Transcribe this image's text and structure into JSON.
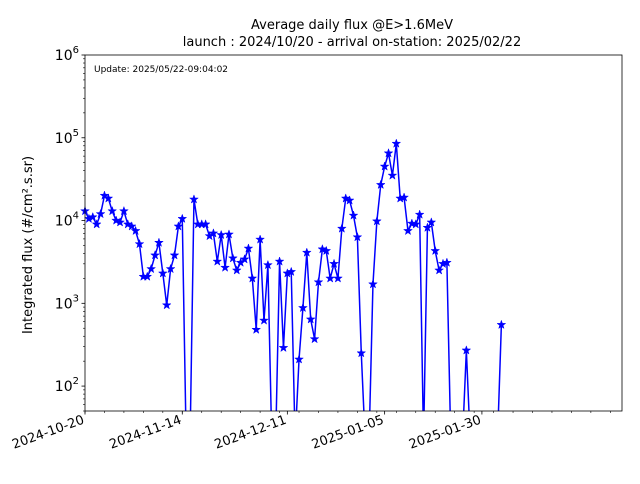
{
  "chart_data": {
    "type": "line",
    "title_line1": "Average daily flux @E>1.6MeV",
    "title_line2": "launch : 2024/10/20 - arrival on-station: 2025/02/22",
    "annotation": "Update: 2025/05/22-09:04:02",
    "ylabel": "Integrated flux (#/cm².s.sr)",
    "xlabel": "",
    "yscale": "log",
    "ylim": [
      50,
      1000000
    ],
    "xlim": [
      "2024-10-20",
      "2025-03-07"
    ],
    "grid": false,
    "color": "#0000ff",
    "marker": "star",
    "x_ticks": [
      "2024-10-20",
      "2024-11-14",
      "2024-12-11",
      "2025-01-05",
      "2025-01-30"
    ],
    "y_ticks": [
      {
        "value": 100,
        "base": "10",
        "exp": "2"
      },
      {
        "value": 1000,
        "base": "10",
        "exp": "3"
      },
      {
        "value": 10000,
        "base": "10",
        "exp": "4"
      },
      {
        "value": 100000,
        "base": "10",
        "exp": "5"
      },
      {
        "value": 1000000,
        "base": "10",
        "exp": "6"
      }
    ],
    "points": [
      {
        "date": "2024-10-20",
        "y": 13000
      },
      {
        "date": "2024-10-21",
        "y": 10500
      },
      {
        "date": "2024-10-22",
        "y": 11000
      },
      {
        "date": "2024-10-23",
        "y": 9000
      },
      {
        "date": "2024-10-24",
        "y": 12000
      },
      {
        "date": "2024-10-25",
        "y": 20000
      },
      {
        "date": "2024-10-26",
        "y": 18500
      },
      {
        "date": "2024-10-27",
        "y": 13000
      },
      {
        "date": "2024-10-28",
        "y": 10000
      },
      {
        "date": "2024-10-29",
        "y": 9500
      },
      {
        "date": "2024-10-30",
        "y": 13000
      },
      {
        "date": "2024-10-31",
        "y": 9000
      },
      {
        "date": "2024-11-01",
        "y": 8500
      },
      {
        "date": "2024-11-02",
        "y": 7500
      },
      {
        "date": "2024-11-03",
        "y": 5200
      },
      {
        "date": "2024-11-04",
        "y": 2100
      },
      {
        "date": "2024-11-05",
        "y": 2100
      },
      {
        "date": "2024-11-06",
        "y": 2600
      },
      {
        "date": "2024-11-07",
        "y": 3800
      },
      {
        "date": "2024-11-08",
        "y": 5400
      },
      {
        "date": "2024-11-09",
        "y": 2300
      },
      {
        "date": "2024-11-10",
        "y": 950
      },
      {
        "date": "2024-11-11",
        "y": 2600
      },
      {
        "date": "2024-11-12",
        "y": 3800
      },
      {
        "date": "2024-11-13",
        "y": 8500
      },
      {
        "date": "2024-11-14",
        "y": 10500
      },
      {
        "date": "2024-11-15",
        "y": null
      },
      {
        "date": "2024-11-16",
        "y": null
      },
      {
        "date": "2024-11-17",
        "y": 18000
      },
      {
        "date": "2024-11-18",
        "y": 9000
      },
      {
        "date": "2024-11-19",
        "y": 9000
      },
      {
        "date": "2024-11-20",
        "y": 9000
      },
      {
        "date": "2024-11-21",
        "y": 6500
      },
      {
        "date": "2024-11-22",
        "y": 7000
      },
      {
        "date": "2024-11-23",
        "y": 3200
      },
      {
        "date": "2024-11-24",
        "y": 6700
      },
      {
        "date": "2024-11-25",
        "y": 2700
      },
      {
        "date": "2024-11-26",
        "y": 6800
      },
      {
        "date": "2024-11-27",
        "y": 3500
      },
      {
        "date": "2024-11-28",
        "y": 2500
      },
      {
        "date": "2024-11-29",
        "y": 3100
      },
      {
        "date": "2024-11-30",
        "y": 3400
      },
      {
        "date": "2024-12-01",
        "y": 4600
      },
      {
        "date": "2024-12-02",
        "y": 2000
      },
      {
        "date": "2024-12-03",
        "y": 480
      },
      {
        "date": "2024-12-04",
        "y": 5900
      },
      {
        "date": "2024-12-05",
        "y": 620
      },
      {
        "date": "2024-12-06",
        "y": 2900
      },
      {
        "date": "2024-12-07",
        "y": null
      },
      {
        "date": "2024-12-08",
        "y": null
      },
      {
        "date": "2024-12-09",
        "y": 3200
      },
      {
        "date": "2024-12-10",
        "y": 290
      },
      {
        "date": "2024-12-11",
        "y": 2300
      },
      {
        "date": "2024-12-12",
        "y": 2400
      },
      {
        "date": "2024-12-13",
        "y": null
      },
      {
        "date": "2024-12-14",
        "y": 210
      },
      {
        "date": "2024-12-15",
        "y": 880
      },
      {
        "date": "2024-12-16",
        "y": 4100
      },
      {
        "date": "2024-12-17",
        "y": 640
      },
      {
        "date": "2024-12-18",
        "y": 370
      },
      {
        "date": "2024-12-19",
        "y": 1800
      },
      {
        "date": "2024-12-20",
        "y": 4500
      },
      {
        "date": "2024-12-21",
        "y": 4300
      },
      {
        "date": "2024-12-22",
        "y": 2000
      },
      {
        "date": "2024-12-23",
        "y": 3000
      },
      {
        "date": "2024-12-24",
        "y": 2000
      },
      {
        "date": "2024-12-25",
        "y": 8000
      },
      {
        "date": "2024-12-26",
        "y": 18500
      },
      {
        "date": "2024-12-27",
        "y": 17500
      },
      {
        "date": "2024-12-28",
        "y": 11500
      },
      {
        "date": "2024-12-29",
        "y": 6300
      },
      {
        "date": "2024-12-30",
        "y": 250
      },
      {
        "date": "2024-12-31",
        "y": null
      },
      {
        "date": "2025-01-01",
        "y": null
      },
      {
        "date": "2025-01-02",
        "y": 1700
      },
      {
        "date": "2025-01-03",
        "y": 9800
      },
      {
        "date": "2025-01-04",
        "y": 27000
      },
      {
        "date": "2025-01-05",
        "y": 45000
      },
      {
        "date": "2025-01-06",
        "y": 65000
      },
      {
        "date": "2025-01-07",
        "y": 35000
      },
      {
        "date": "2025-01-08",
        "y": 85000
      },
      {
        "date": "2025-01-09",
        "y": 18500
      },
      {
        "date": "2025-01-10",
        "y": 19000
      },
      {
        "date": "2025-01-11",
        "y": 7500
      },
      {
        "date": "2025-01-12",
        "y": 9200
      },
      {
        "date": "2025-01-13",
        "y": 9000
      },
      {
        "date": "2025-01-14",
        "y": 11800
      },
      {
        "date": "2025-01-15",
        "y": null
      },
      {
        "date": "2025-01-16",
        "y": 8200
      },
      {
        "date": "2025-01-17",
        "y": 9500
      },
      {
        "date": "2025-01-18",
        "y": 4300
      },
      {
        "date": "2025-01-19",
        "y": 2500
      },
      {
        "date": "2025-01-20",
        "y": 3000
      },
      {
        "date": "2025-01-21",
        "y": 3100
      },
      {
        "date": "2025-01-22",
        "y": null
      },
      {
        "date": "2025-01-23",
        "y": null
      },
      {
        "date": "2025-01-24",
        "y": null
      },
      {
        "date": "2025-01-25",
        "y": null
      },
      {
        "date": "2025-01-26",
        "y": 270
      },
      {
        "date": "2025-01-27",
        "y": null
      },
      {
        "date": "2025-01-28",
        "y": null
      },
      {
        "date": "2025-01-29",
        "y": null
      },
      {
        "date": "2025-01-30",
        "y": null
      },
      {
        "date": "2025-01-31",
        "y": null
      },
      {
        "date": "2025-02-01",
        "y": null
      },
      {
        "date": "2025-02-02",
        "y": null
      },
      {
        "date": "2025-02-03",
        "y": null
      },
      {
        "date": "2025-02-04",
        "y": 550
      }
    ]
  }
}
